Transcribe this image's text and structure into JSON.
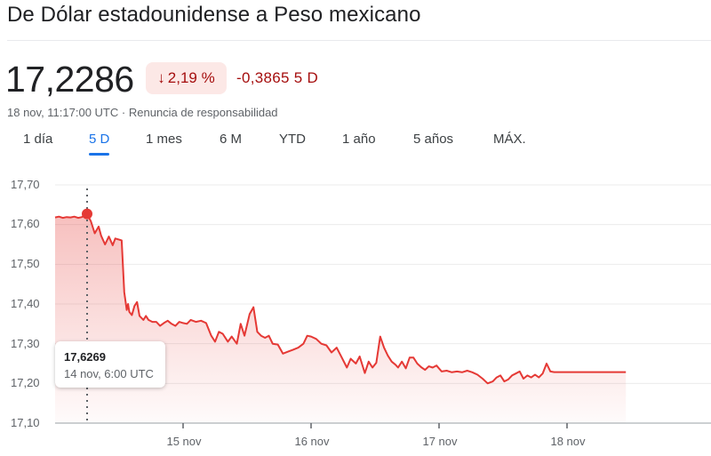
{
  "header": {
    "title": "De Dólar estadounidense a Peso mexicano"
  },
  "quote": {
    "price": "17,2286",
    "change_arrow": "↓",
    "change_percent": "2,19 %",
    "change_abs": "-0,3865 5 D",
    "timestamp": "18 nov, 11:17:00 UTC",
    "separator": "·",
    "disclaimer": "Renuncia de responsabilidad"
  },
  "colors": {
    "line": "#e53935",
    "negative_text": "#a50e0e",
    "negative_badge_bg": "#fce8e6",
    "active_tab": "#1a73e8"
  },
  "tabs": [
    {
      "label": "1 día",
      "active": false
    },
    {
      "label": "5 D",
      "active": true
    },
    {
      "label": "1 mes",
      "active": false
    },
    {
      "label": "6 M",
      "active": false
    },
    {
      "label": "YTD",
      "active": false
    },
    {
      "label": "1 año",
      "active": false
    },
    {
      "label": "5 años",
      "active": false
    },
    {
      "label": "MÁX.",
      "active": false
    }
  ],
  "tooltip": {
    "value": "17,6269",
    "time": "14 nov, 6:00 UTC"
  },
  "chart_data": {
    "type": "area",
    "title": "De Dólar estadounidense a Peso mexicano",
    "xlabel": "",
    "ylabel": "",
    "ylim": [
      17.1,
      17.7
    ],
    "yticks": [
      "17,70",
      "17,60",
      "17,50",
      "17,40",
      "17,30",
      "17,20",
      "17,10"
    ],
    "xticks": [
      "15 nov",
      "16 nov",
      "17 nov",
      "18 nov"
    ],
    "grid": true,
    "legend": "none",
    "highlight": {
      "x": 14.25,
      "y": 17.6269,
      "label": "14 nov, 6:00 UTC"
    },
    "x_unit": "day of November (fractional)",
    "x": [
      14.0,
      14.03,
      14.06,
      14.09,
      14.12,
      14.15,
      14.18,
      14.21,
      14.25,
      14.28,
      14.31,
      14.34,
      14.36,
      14.39,
      14.42,
      14.45,
      14.47,
      14.5,
      14.52,
      14.54,
      14.56,
      14.57,
      14.58,
      14.6,
      14.62,
      14.64,
      14.66,
      14.69,
      14.71,
      14.73,
      14.76,
      14.79,
      14.82,
      14.85,
      14.88,
      14.91,
      14.94,
      14.97,
      15.0,
      15.03,
      15.06,
      15.1,
      15.14,
      15.18,
      15.22,
      15.25,
      15.28,
      15.31,
      15.35,
      15.38,
      15.42,
      15.45,
      15.48,
      15.52,
      15.55,
      15.58,
      15.61,
      15.64,
      15.67,
      15.7,
      15.74,
      15.78,
      15.82,
      15.86,
      15.9,
      15.94,
      15.97,
      16.0,
      16.04,
      16.08,
      16.12,
      16.16,
      16.2,
      16.24,
      16.28,
      16.31,
      16.35,
      16.38,
      16.42,
      16.45,
      16.48,
      16.51,
      16.54,
      16.57,
      16.6,
      16.63,
      16.66,
      16.68,
      16.71,
      16.74,
      16.77,
      16.8,
      16.83,
      16.86,
      16.89,
      16.92,
      16.95,
      16.98,
      17.02,
      17.06,
      17.1,
      17.14,
      17.18,
      17.22,
      17.26,
      17.3,
      17.34,
      17.38,
      17.42,
      17.45,
      17.48,
      17.51,
      17.54,
      17.57,
      17.6,
      17.63,
      17.66,
      17.69,
      17.72,
      17.75,
      17.78,
      17.81,
      17.84,
      17.87,
      17.9,
      18.0,
      18.2,
      18.46
    ],
    "values": [
      17.618,
      17.62,
      17.617,
      17.619,
      17.618,
      17.62,
      17.617,
      17.619,
      17.627,
      17.608,
      17.578,
      17.595,
      17.572,
      17.55,
      17.57,
      17.548,
      17.565,
      17.562,
      17.56,
      17.43,
      17.385,
      17.4,
      17.38,
      17.372,
      17.395,
      17.405,
      17.37,
      17.36,
      17.37,
      17.36,
      17.355,
      17.355,
      17.345,
      17.352,
      17.358,
      17.35,
      17.345,
      17.355,
      17.352,
      17.35,
      17.36,
      17.355,
      17.358,
      17.352,
      17.32,
      17.305,
      17.33,
      17.325,
      17.305,
      17.318,
      17.3,
      17.35,
      17.32,
      17.375,
      17.392,
      17.33,
      17.32,
      17.315,
      17.32,
      17.3,
      17.298,
      17.275,
      17.28,
      17.285,
      17.29,
      17.3,
      17.32,
      17.318,
      17.312,
      17.3,
      17.296,
      17.278,
      17.29,
      17.265,
      17.24,
      17.262,
      17.25,
      17.268,
      17.226,
      17.255,
      17.24,
      17.252,
      17.318,
      17.29,
      17.27,
      17.255,
      17.247,
      17.24,
      17.255,
      17.238,
      17.265,
      17.265,
      17.25,
      17.241,
      17.234,
      17.243,
      17.24,
      17.245,
      17.23,
      17.232,
      17.228,
      17.23,
      17.228,
      17.232,
      17.228,
      17.222,
      17.212,
      17.2,
      17.205,
      17.215,
      17.22,
      17.205,
      17.21,
      17.22,
      17.225,
      17.23,
      17.212,
      17.22,
      17.215,
      17.222,
      17.215,
      17.225,
      17.25,
      17.23,
      17.2286,
      17.2286,
      17.2286,
      17.2286
    ]
  }
}
